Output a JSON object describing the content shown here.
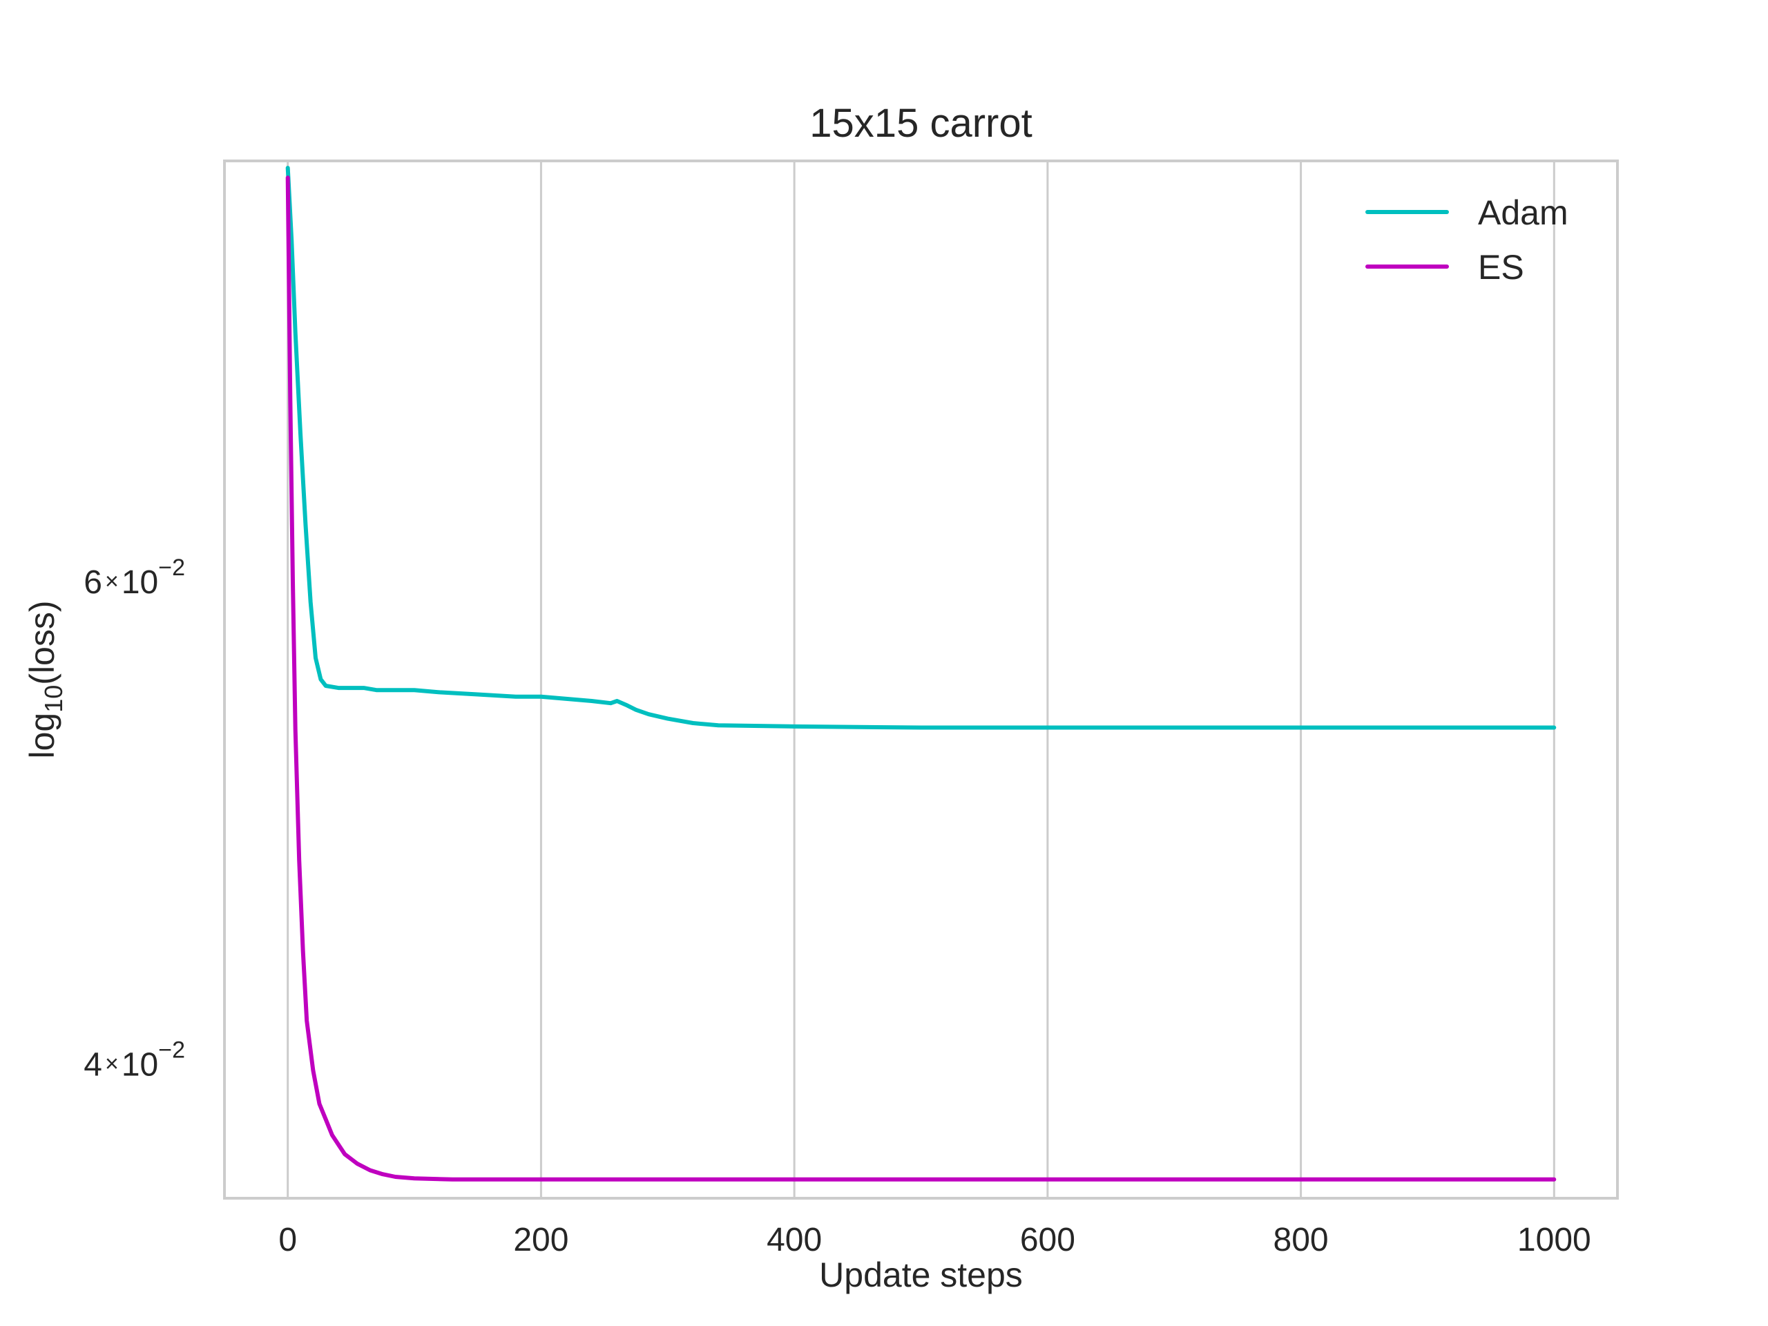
{
  "chart_data": {
    "type": "line",
    "title": "15x15 carrot",
    "xlabel": "Update steps",
    "ylabel": "log₁₀(loss)",
    "ylabel_parts": {
      "main": "log",
      "sub": "10",
      "suffix": "(loss)"
    },
    "yscale": "log",
    "xlim": [
      -50,
      1050
    ],
    "ylim": [
      0.03575,
      0.0855
    ],
    "x_ticks": [
      0,
      200,
      400,
      600,
      800,
      1000
    ],
    "x_tick_labels": [
      "0",
      "200",
      "400",
      "600",
      "800",
      "1000"
    ],
    "y_ticks": [
      0.04,
      0.06
    ],
    "y_tick_labels": [
      {
        "mantissa": "4",
        "times": "×",
        "base": "10",
        "exp": "−2"
      },
      {
        "mantissa": "6",
        "times": "×",
        "base": "10",
        "exp": "−2"
      }
    ],
    "grid": true,
    "legend_position": "top-right",
    "series": [
      {
        "name": "Adam",
        "color": "#00bfbf",
        "points": [
          [
            0,
            0.085
          ],
          [
            3,
            0.08
          ],
          [
            6,
            0.074
          ],
          [
            10,
            0.068
          ],
          [
            14,
            0.063
          ],
          [
            18,
            0.059
          ],
          [
            22,
            0.0563
          ],
          [
            26,
            0.0553
          ],
          [
            30,
            0.055
          ],
          [
            40,
            0.0549
          ],
          [
            60,
            0.0549
          ],
          [
            70,
            0.0548
          ],
          [
            80,
            0.0548
          ],
          [
            100,
            0.0548
          ],
          [
            120,
            0.0547
          ],
          [
            150,
            0.0546
          ],
          [
            180,
            0.0545
          ],
          [
            200,
            0.0545
          ],
          [
            220,
            0.0544
          ],
          [
            240,
            0.0543
          ],
          [
            255,
            0.0542
          ],
          [
            260,
            0.0543
          ],
          [
            268,
            0.0541
          ],
          [
            275,
            0.0539
          ],
          [
            285,
            0.0537
          ],
          [
            300,
            0.0535
          ],
          [
            320,
            0.0533
          ],
          [
            340,
            0.0532
          ],
          [
            400,
            0.05315
          ],
          [
            500,
            0.0531
          ],
          [
            700,
            0.0531
          ],
          [
            1000,
            0.0531
          ]
        ]
      },
      {
        "name": "ES",
        "color": "#bf00bf",
        "points": [
          [
            0,
            0.0843
          ],
          [
            2,
            0.07
          ],
          [
            4,
            0.06
          ],
          [
            6,
            0.053
          ],
          [
            9,
            0.0475
          ],
          [
            12,
            0.044
          ],
          [
            15,
            0.0415
          ],
          [
            20,
            0.0398
          ],
          [
            25,
            0.0387
          ],
          [
            30,
            0.0382
          ],
          [
            35,
            0.0377
          ],
          [
            40,
            0.0374
          ],
          [
            45,
            0.0371
          ],
          [
            55,
            0.0368
          ],
          [
            65,
            0.0366
          ],
          [
            75,
            0.03648
          ],
          [
            85,
            0.0364
          ],
          [
            100,
            0.03635
          ],
          [
            130,
            0.03632
          ],
          [
            200,
            0.03632
          ],
          [
            500,
            0.03632
          ],
          [
            1000,
            0.03632
          ]
        ]
      }
    ]
  }
}
